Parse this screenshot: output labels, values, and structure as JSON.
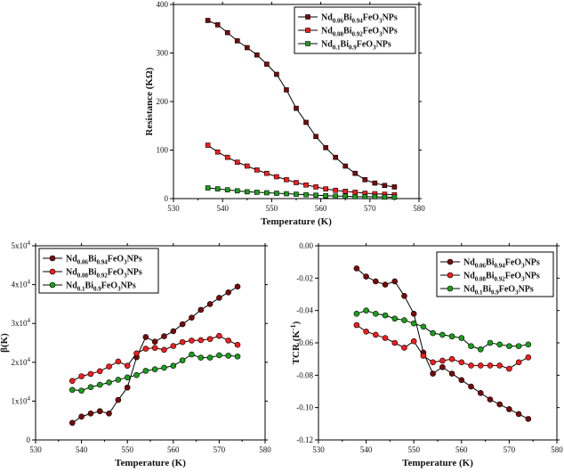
{
  "colors": {
    "s1": "#7a0a0a",
    "s2": "#ff1a1a",
    "s3": "#19a019",
    "axis": "#000000",
    "grid": "#dddddd"
  },
  "legend_labels": [
    {
      "base": "Nd",
      "sub1": "0.06",
      "mid": "Bi",
      "sub2": "0.94",
      "tail1": "FeO",
      "sub3": "3",
      "tail2": "NPs"
    },
    {
      "base": "Nd",
      "sub1": "0.08",
      "mid": "Bi",
      "sub2": "0.92",
      "tail1": "FeO",
      "sub3": "3",
      "tail2": "NPs"
    },
    {
      "base": "Nd",
      "sub1": "0.1",
      "mid": "Bi",
      "sub2": "0.9",
      "tail1": "FeO",
      "sub3": "3",
      "tail2": "NPs"
    }
  ],
  "chart_data": [
    {
      "id": "top",
      "type": "line",
      "xlabel": "Temperature (K)",
      "ylabel": "Resistance (KΩ)",
      "xlim": [
        530,
        580
      ],
      "ylim": [
        0,
        400
      ],
      "xticks": [
        "530",
        "540",
        "550",
        "560",
        "570",
        "580"
      ],
      "yticks": [
        "0",
        "100",
        "200",
        "300",
        "400"
      ],
      "xtick_values": [
        530,
        540,
        550,
        560,
        570,
        580
      ],
      "ytick_values": [
        0,
        100,
        200,
        300,
        400
      ],
      "legend_position": "top-right",
      "marker": "square",
      "series": [
        {
          "name": "Nd0.06Bi0.94FeO3NPs",
          "x": [
            537,
            539,
            541,
            543,
            545,
            547,
            549,
            551,
            553,
            555,
            557,
            559,
            561,
            563,
            565,
            567,
            569,
            571,
            573,
            575
          ],
          "y": [
            367,
            358,
            342,
            325,
            311,
            296,
            277,
            256,
            224,
            186,
            157,
            128,
            105,
            85,
            67,
            52,
            39,
            32,
            27,
            24
          ]
        },
        {
          "name": "Nd0.08Bi0.92FeO3NPs",
          "x": [
            537,
            539,
            541,
            543,
            545,
            547,
            549,
            551,
            553,
            555,
            557,
            559,
            561,
            563,
            565,
            567,
            569,
            571,
            573,
            575
          ],
          "y": [
            110,
            96,
            85,
            75,
            67,
            59,
            52,
            45,
            39,
            33,
            28,
            24,
            20,
            17,
            15,
            13,
            11,
            10,
            9,
            8
          ]
        },
        {
          "name": "Nd0.1Bi0.9FeO3NPs",
          "x": [
            537,
            539,
            541,
            543,
            545,
            547,
            549,
            551,
            553,
            555,
            557,
            559,
            561,
            563,
            565,
            567,
            569,
            571,
            573,
            575
          ],
          "y": [
            22,
            20,
            18,
            16,
            14,
            13,
            12,
            11,
            10,
            9,
            8,
            7,
            6,
            5,
            5,
            4,
            4,
            4,
            3,
            3
          ]
        }
      ]
    },
    {
      "id": "bl",
      "type": "line",
      "xlabel": "Temperature (K)",
      "ylabel": "β(K)",
      "xlim": [
        530,
        580
      ],
      "ylim": [
        0,
        50000
      ],
      "xticks": [
        "530",
        "540",
        "550",
        "560",
        "570",
        "580"
      ],
      "xtick_values": [
        530,
        540,
        550,
        560,
        570,
        580
      ],
      "ytick_values": [
        0,
        10000,
        20000,
        30000,
        40000,
        50000
      ],
      "yticks_sci": [
        {
          "lead": "0",
          "exp": ""
        },
        {
          "lead": "1x10",
          "exp": "4"
        },
        {
          "lead": "2x10",
          "exp": "4"
        },
        {
          "lead": "3x10",
          "exp": "4"
        },
        {
          "lead": "4x10",
          "exp": "4"
        },
        {
          "lead": "5x10",
          "exp": "4"
        }
      ],
      "legend_position": "top-left",
      "marker": "circle",
      "series": [
        {
          "name": "Nd0.06Bi0.94FeO3NPs",
          "x": [
            538,
            540,
            542,
            544,
            546,
            548,
            550,
            552,
            554,
            556,
            558,
            560,
            562,
            564,
            566,
            568,
            570,
            572,
            574
          ],
          "y": [
            4400,
            6000,
            6800,
            7400,
            6800,
            10300,
            13500,
            21300,
            26500,
            25300,
            26700,
            28000,
            29800,
            31500,
            33500,
            35000,
            36600,
            38000,
            39500
          ]
        },
        {
          "name": "Nd0.08Bi0.92FeO3NPs",
          "x": [
            538,
            540,
            542,
            544,
            546,
            548,
            550,
            552,
            554,
            556,
            558,
            560,
            562,
            564,
            566,
            568,
            570,
            572,
            574
          ],
          "y": [
            15200,
            16400,
            17000,
            17700,
            18900,
            20200,
            19100,
            22300,
            23500,
            23700,
            23200,
            24200,
            25200,
            25600,
            25700,
            26000,
            26800,
            25600,
            24500
          ]
        },
        {
          "name": "Nd0.1Bi0.9FeO3NPs",
          "x": [
            538,
            540,
            542,
            544,
            546,
            548,
            550,
            552,
            554,
            556,
            558,
            560,
            562,
            564,
            566,
            568,
            570,
            572,
            574
          ],
          "y": [
            12900,
            12700,
            13600,
            14200,
            14800,
            15500,
            16100,
            16700,
            17800,
            18200,
            18600,
            19100,
            20500,
            22000,
            21200,
            21200,
            21800,
            21700,
            21500
          ]
        }
      ]
    },
    {
      "id": "br",
      "type": "line",
      "xlabel": "Temperature (K)",
      "ylabel": "TCR (K",
      "ylabel_sup": "-1",
      "ylabel_tail": ")",
      "xlim": [
        530,
        580
      ],
      "ylim": [
        -0.12,
        0.0
      ],
      "xticks": [
        "530",
        "540",
        "550",
        "560",
        "570",
        "580"
      ],
      "yticks": [
        "0.00",
        "-0.02",
        "-0.04",
        "-0.06",
        "-0.08",
        "-0.10",
        "-0.12"
      ],
      "xtick_values": [
        530,
        540,
        550,
        560,
        570,
        580
      ],
      "ytick_values": [
        0.0,
        -0.02,
        -0.04,
        -0.06,
        -0.08,
        -0.1,
        -0.12
      ],
      "legend_position": "top-right",
      "marker": "circle",
      "series": [
        {
          "name": "Nd0.06Bi0.94FeO3NPs",
          "x": [
            538,
            540,
            542,
            544,
            546,
            548,
            550,
            552,
            554,
            556,
            558,
            560,
            562,
            564,
            566,
            568,
            570,
            572,
            574
          ],
          "y": [
            -0.014,
            -0.019,
            -0.022,
            -0.024,
            -0.022,
            -0.031,
            -0.042,
            -0.066,
            -0.079,
            -0.075,
            -0.079,
            -0.083,
            -0.087,
            -0.091,
            -0.095,
            -0.098,
            -0.101,
            -0.104,
            -0.107
          ]
        },
        {
          "name": "Nd0.08Bi0.92FeO3NPs",
          "x": [
            538,
            540,
            542,
            544,
            546,
            548,
            550,
            552,
            554,
            556,
            558,
            560,
            562,
            564,
            566,
            568,
            570,
            572,
            574
          ],
          "y": [
            -0.049,
            -0.053,
            -0.055,
            -0.057,
            -0.06,
            -0.063,
            -0.059,
            -0.068,
            -0.072,
            -0.071,
            -0.07,
            -0.072,
            -0.074,
            -0.074,
            -0.074,
            -0.074,
            -0.076,
            -0.072,
            -0.069
          ]
        },
        {
          "name": "Nd0.1Bi0.9FeO3NPs",
          "x": [
            538,
            540,
            542,
            544,
            546,
            548,
            550,
            552,
            554,
            556,
            558,
            560,
            562,
            564,
            566,
            568,
            570,
            572,
            574
          ],
          "y": [
            -0.042,
            -0.04,
            -0.042,
            -0.043,
            -0.045,
            -0.046,
            -0.048,
            -0.05,
            -0.054,
            -0.055,
            -0.056,
            -0.057,
            -0.062,
            -0.064,
            -0.06,
            -0.061,
            -0.062,
            -0.062,
            -0.061
          ]
        }
      ]
    }
  ]
}
